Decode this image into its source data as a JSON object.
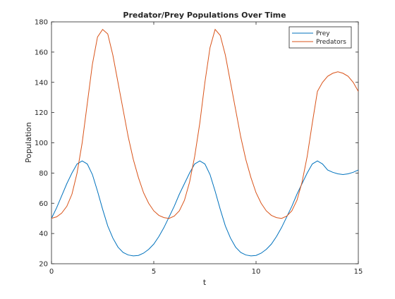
{
  "chart_data": {
    "type": "line",
    "title": "Predator/Prey Populations Over Time",
    "xlabel": "t",
    "ylabel": "Population",
    "xlim": [
      0,
      15
    ],
    "ylim": [
      20,
      180
    ],
    "xticks": [
      0,
      5,
      10,
      15
    ],
    "yticks": [
      20,
      40,
      60,
      80,
      100,
      120,
      140,
      160,
      180
    ],
    "grid": false,
    "legend": "top-right",
    "x": [
      0,
      0.25,
      0.5,
      0.75,
      1.0,
      1.25,
      1.5,
      1.75,
      2.0,
      2.25,
      2.5,
      2.75,
      3.0,
      3.25,
      3.5,
      3.75,
      4.0,
      4.25,
      4.5,
      4.75,
      5.0,
      5.25,
      5.5,
      5.75,
      6.0,
      6.25,
      6.5,
      6.75,
      7.0,
      7.25,
      7.5,
      7.75,
      8.0,
      8.25,
      8.5,
      8.75,
      9.0,
      9.25,
      9.5,
      9.75,
      10.0,
      10.25,
      10.5,
      10.75,
      11.0,
      11.25,
      11.5,
      11.75,
      12.0,
      12.25,
      12.5,
      12.75,
      13.0,
      13.25,
      13.5,
      13.75,
      14.0,
      14.25,
      14.5,
      14.75,
      15.0
    ],
    "series": [
      {
        "name": "Prey",
        "color": "#0072bd",
        "values": [
          50,
          57,
          65,
          73,
          80,
          86,
          88,
          86,
          79,
          68,
          56,
          45,
          37,
          31,
          27.5,
          25.8,
          25.2,
          25.5,
          27,
          29.5,
          33,
          38,
          44,
          51,
          58,
          66,
          73,
          80,
          86,
          88,
          86,
          79,
          68,
          56,
          45,
          37,
          31,
          27.5,
          25.8,
          25.2,
          25.5,
          27,
          29.5,
          33,
          38,
          44,
          51,
          58,
          66,
          73,
          80,
          86,
          88,
          86,
          82,
          80.5,
          79.5,
          79,
          79.5,
          80.5,
          82
        ]
      },
      {
        "name": "Predators",
        "color": "#d95319",
        "values": [
          50,
          51,
          53.5,
          58,
          66,
          80,
          100,
          126,
          152,
          170,
          175,
          172,
          158,
          140,
          122,
          104,
          89,
          77,
          67,
          60,
          55,
          52,
          50.5,
          50,
          51.5,
          55,
          62,
          74,
          91,
          113,
          140,
          163,
          175,
          171,
          158,
          140,
          122,
          104,
          89,
          77,
          67,
          60,
          55,
          52,
          50.5,
          50,
          51.5,
          55,
          62,
          74,
          91,
          113,
          134,
          140,
          144,
          146,
          147,
          146,
          144,
          140,
          134
        ]
      }
    ]
  }
}
